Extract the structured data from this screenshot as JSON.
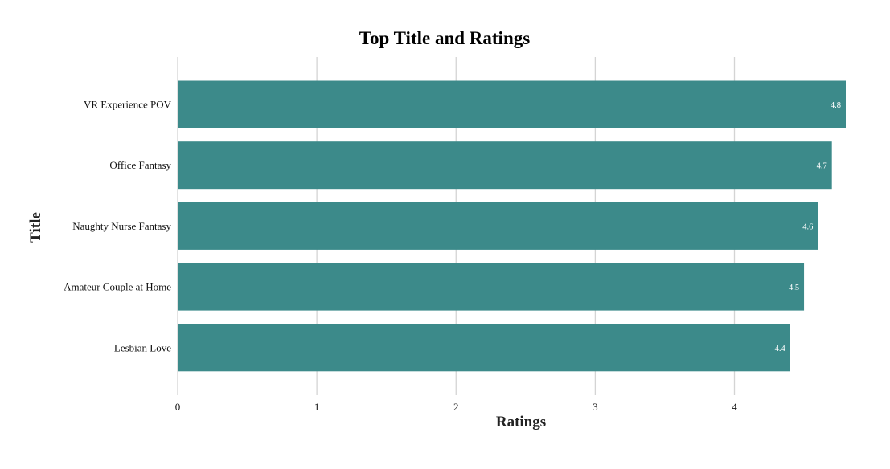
{
  "chart_data": {
    "type": "bar",
    "orientation": "horizontal",
    "title": "Top Title and Ratings",
    "xlabel": "Ratings",
    "ylabel": "Title",
    "categories": [
      "VR Experience POV",
      "Office Fantasy",
      "Naughty Nurse Fantasy",
      "Amateur Couple at Home",
      "Lesbian Love"
    ],
    "values": [
      4.8,
      4.7,
      4.6,
      4.5,
      4.4
    ],
    "value_labels": [
      "4.8",
      "4.7",
      "4.6",
      "4.5",
      "4.4"
    ],
    "xlim": [
      0,
      4.8
    ],
    "xticks": [
      0,
      1,
      2,
      3,
      4
    ],
    "grid": true,
    "legend": "none",
    "bar_color": "#3c8a8a"
  }
}
